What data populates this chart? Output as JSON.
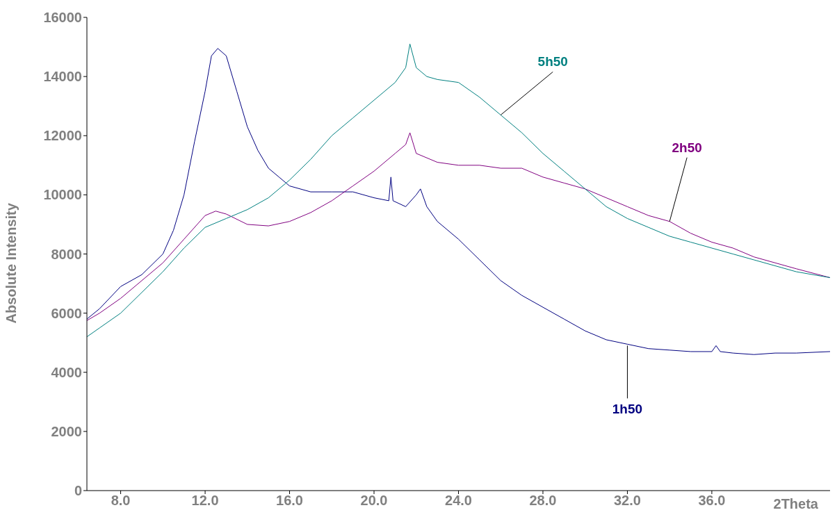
{
  "chart_data": {
    "type": "line",
    "ylabel": "Absolute Intensity",
    "xlim": [
      6.4,
      41.6
    ],
    "ylim": [
      0,
      16000
    ],
    "xticks": [
      {
        "value": 8,
        "label": "8.0"
      },
      {
        "value": 12,
        "label": "12.0"
      },
      {
        "value": 16,
        "label": "16.0"
      },
      {
        "value": 20,
        "label": "20.0"
      },
      {
        "value": 24,
        "label": "24.0"
      },
      {
        "value": 28,
        "label": "28.0"
      },
      {
        "value": 32,
        "label": "32.0"
      },
      {
        "value": 36,
        "label": "36.0"
      }
    ],
    "xlabel": "2Theta",
    "yticks": [
      0,
      2000,
      4000,
      6000,
      8000,
      10000,
      12000,
      14000,
      16000
    ],
    "grid": false,
    "legend": false,
    "marker": "none",
    "line_style": "solid",
    "series": [
      {
        "color": "#000080",
        "x": [
          6.4,
          7,
          8,
          9,
          10,
          10.5,
          11,
          11.5,
          12,
          12.3,
          12.6,
          13,
          13.5,
          14,
          14.5,
          15,
          15.5,
          16,
          17,
          18,
          19,
          20,
          20.7,
          20.8,
          20.9,
          21.5,
          22,
          22.2,
          22.5,
          23,
          24,
          25,
          26,
          27,
          28,
          29,
          30,
          31,
          32,
          33,
          34,
          35,
          36,
          36.2,
          36.4,
          37,
          38,
          39,
          40,
          41.6
        ],
        "values": [
          5800,
          6150,
          6900,
          7300,
          8000,
          8800,
          10000,
          11800,
          13500,
          14700,
          14950,
          14700,
          13500,
          12300,
          11500,
          10900,
          10600,
          10300,
          10100,
          10100,
          10100,
          9900,
          9800,
          10600,
          9800,
          9600,
          10000,
          10200,
          9600,
          9100,
          8500,
          7800,
          7100,
          6600,
          6200,
          5800,
          5400,
          5100,
          4950,
          4800,
          4750,
          4700,
          4700,
          4900,
          4700,
          4650,
          4600,
          4650,
          4650,
          4700
        ]
      },
      {
        "color": "#800080",
        "x": [
          6.4,
          7,
          8,
          9,
          10,
          11,
          12,
          12.5,
          13,
          14,
          15,
          16,
          17,
          18,
          19,
          20,
          21,
          21.5,
          21.7,
          22,
          23,
          24,
          25,
          26,
          27,
          28,
          29,
          30,
          31,
          32,
          33,
          34,
          35,
          36,
          37,
          38,
          39,
          40,
          41.6
        ],
        "values": [
          5750,
          6000,
          6500,
          7100,
          7700,
          8500,
          9300,
          9450,
          9350,
          9000,
          8950,
          9100,
          9400,
          9800,
          10300,
          10800,
          11400,
          11700,
          12100,
          11400,
          11100,
          11000,
          11000,
          10900,
          10900,
          10600,
          10400,
          10200,
          9900,
          9600,
          9300,
          9100,
          8700,
          8400,
          8200,
          7900,
          7700,
          7500,
          7200
        ]
      },
      {
        "color": "#008080",
        "x": [
          6.4,
          7,
          8,
          9,
          10,
          11,
          12,
          13,
          14,
          15,
          16,
          17,
          18,
          19,
          20,
          21,
          21.5,
          21.7,
          22,
          22.5,
          23,
          24,
          25,
          26,
          27,
          28,
          29,
          30,
          31,
          32,
          33,
          34,
          35,
          36,
          37,
          38,
          39,
          40,
          41.6
        ],
        "values": [
          5200,
          5500,
          6000,
          6700,
          7400,
          8200,
          8900,
          9200,
          9500,
          9900,
          10500,
          11200,
          12000,
          12600,
          13200,
          13800,
          14300,
          15100,
          14300,
          14000,
          13900,
          13800,
          13300,
          12700,
          12100,
          11400,
          10800,
          10200,
          9600,
          9200,
          8900,
          8600,
          8400,
          8200,
          8000,
          7800,
          7600,
          7400,
          7200
        ]
      }
    ],
    "annotations": [
      {
        "text": "1h50",
        "x": 32,
        "y": 4950
      },
      {
        "text": "2h50",
        "x": 34,
        "y": 9100
      },
      {
        "text": "5h50",
        "x": 26,
        "y": 12700
      }
    ]
  }
}
